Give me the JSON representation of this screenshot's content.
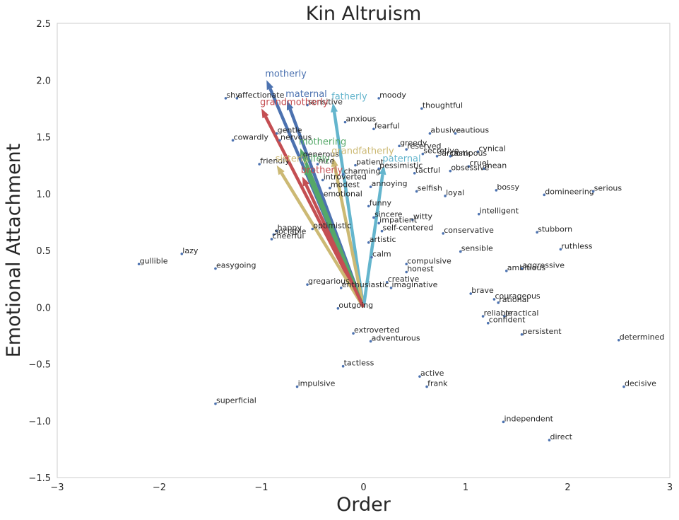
{
  "chart_data": {
    "type": "scatter",
    "title": "Kin Altruism",
    "xlabel": "Order",
    "ylabel": "Emotional Attachment",
    "xlim": [
      -3,
      3
    ],
    "ylim": [
      -1.5,
      2.5
    ],
    "xticks": [
      "−3",
      "−2",
      "−1",
      "0",
      "1",
      "2",
      "3"
    ],
    "yticks": [
      "−1.5",
      "−1.0",
      "−0.5",
      "0.0",
      "0.5",
      "1.0",
      "1.5",
      "2.0",
      "2.5"
    ],
    "grid": false,
    "point_color": "#4c72b0",
    "vectors": [
      {
        "label": "motherly",
        "x": -0.95,
        "y": 2.0,
        "color": "#4c72b0"
      },
      {
        "label": "maternal",
        "x": -0.75,
        "y": 1.82,
        "color": "#4c72b0"
      },
      {
        "label": "fatherly",
        "x": -0.3,
        "y": 1.8,
        "color": "#64b5cd"
      },
      {
        "label": "grandmotherly",
        "x": -1.0,
        "y": 1.75,
        "color": "#c44e52"
      },
      {
        "label": "mothering",
        "x": -0.62,
        "y": 1.4,
        "color": "#55a868"
      },
      {
        "label": "grandfatherly",
        "x": -0.3,
        "y": 1.32,
        "color": "#ccb974"
      },
      {
        "label": "paternal",
        "x": 0.2,
        "y": 1.25,
        "color": "#64b5cd"
      },
      {
        "label": "sisterly",
        "x": -0.85,
        "y": 1.25,
        "color": "#ccb974"
      },
      {
        "label": "wifely",
        "x": -0.58,
        "y": 1.25,
        "color": "#55a868"
      },
      {
        "label": "brotherly",
        "x": -0.6,
        "y": 1.15,
        "color": "#c44e52"
      }
    ],
    "points": [
      {
        "label": "shy",
        "x": -1.35,
        "y": 1.84
      },
      {
        "label": "affectionate",
        "x": -1.24,
        "y": 1.84
      },
      {
        "label": "sensitive",
        "x": -0.55,
        "y": 1.78
      },
      {
        "label": "moody",
        "x": 0.15,
        "y": 1.84
      },
      {
        "label": "thoughtful",
        "x": 0.57,
        "y": 1.75
      },
      {
        "label": "anxious",
        "x": -0.18,
        "y": 1.63
      },
      {
        "label": "fearful",
        "x": 0.1,
        "y": 1.57
      },
      {
        "label": "abusive",
        "x": 0.65,
        "y": 1.53
      },
      {
        "label": "cautious",
        "x": 0.9,
        "y": 1.53
      },
      {
        "label": "gentle",
        "x": -0.85,
        "y": 1.53
      },
      {
        "label": "cowardly",
        "x": -1.28,
        "y": 1.47
      },
      {
        "label": "nervous",
        "x": -0.82,
        "y": 1.47
      },
      {
        "label": "greedy",
        "x": 0.35,
        "y": 1.42
      },
      {
        "label": "reserved",
        "x": 0.42,
        "y": 1.39
      },
      {
        "label": "cynical",
        "x": 1.12,
        "y": 1.37
      },
      {
        "label": "secretive",
        "x": 0.58,
        "y": 1.35
      },
      {
        "label": "generous",
        "x": -0.6,
        "y": 1.32
      },
      {
        "label": "sarcastic",
        "x": 0.72,
        "y": 1.33
      },
      {
        "label": "pompous",
        "x": 0.85,
        "y": 1.33
      },
      {
        "label": "friendly",
        "x": -1.02,
        "y": 1.26
      },
      {
        "label": "nice",
        "x": -0.45,
        "y": 1.26
      },
      {
        "label": "patient",
        "x": -0.08,
        "y": 1.25
      },
      {
        "label": "pessimistic",
        "x": 0.15,
        "y": 1.22
      },
      {
        "label": "cruel",
        "x": 1.03,
        "y": 1.24
      },
      {
        "label": "mean",
        "x": 1.18,
        "y": 1.22
      },
      {
        "label": "obsessive",
        "x": 0.85,
        "y": 1.2
      },
      {
        "label": "tactful",
        "x": 0.5,
        "y": 1.18
      },
      {
        "label": "charming",
        "x": -0.2,
        "y": 1.17
      },
      {
        "label": "introverted",
        "x": -0.4,
        "y": 1.12
      },
      {
        "label": "modest",
        "x": -0.33,
        "y": 1.05
      },
      {
        "label": "annoying",
        "x": 0.07,
        "y": 1.06
      },
      {
        "label": "selfish",
        "x": 0.52,
        "y": 1.02
      },
      {
        "label": "bossy",
        "x": 1.3,
        "y": 1.03
      },
      {
        "label": "loyal",
        "x": 0.8,
        "y": 0.98
      },
      {
        "label": "domineering",
        "x": 1.77,
        "y": 0.99
      },
      {
        "label": "serious",
        "x": 2.25,
        "y": 1.02
      },
      {
        "label": "emotional",
        "x": -0.4,
        "y": 0.97
      },
      {
        "label": "funny",
        "x": 0.05,
        "y": 0.89
      },
      {
        "label": "intelligent",
        "x": 1.13,
        "y": 0.82
      },
      {
        "label": "sincere",
        "x": 0.1,
        "y": 0.79
      },
      {
        "label": "witty",
        "x": 0.48,
        "y": 0.77
      },
      {
        "label": "impatient",
        "x": 0.15,
        "y": 0.74
      },
      {
        "label": "optimistic",
        "x": -0.5,
        "y": 0.69
      },
      {
        "label": "self-centered",
        "x": 0.18,
        "y": 0.67
      },
      {
        "label": "conservative",
        "x": 0.78,
        "y": 0.65
      },
      {
        "label": "stubborn",
        "x": 1.7,
        "y": 0.66
      },
      {
        "label": "happy",
        "x": -0.85,
        "y": 0.67
      },
      {
        "label": "sociable",
        "x": -0.88,
        "y": 0.64
      },
      {
        "label": "cheerful",
        "x": -0.9,
        "y": 0.6
      },
      {
        "label": "artistic",
        "x": 0.05,
        "y": 0.57
      },
      {
        "label": "ruthless",
        "x": 1.93,
        "y": 0.51
      },
      {
        "label": "sensible",
        "x": 0.95,
        "y": 0.49
      },
      {
        "label": "gullible",
        "x": -2.2,
        "y": 0.38
      },
      {
        "label": "lazy",
        "x": -1.78,
        "y": 0.47
      },
      {
        "label": "calm",
        "x": 0.08,
        "y": 0.44
      },
      {
        "label": "easygoing",
        "x": -1.45,
        "y": 0.34
      },
      {
        "label": "compulsive",
        "x": 0.42,
        "y": 0.38
      },
      {
        "label": "aggressive",
        "x": 1.55,
        "y": 0.34
      },
      {
        "label": "honest",
        "x": 0.42,
        "y": 0.31
      },
      {
        "label": "ambitious",
        "x": 1.4,
        "y": 0.32
      },
      {
        "label": "creative",
        "x": 0.23,
        "y": 0.22
      },
      {
        "label": "gregarious",
        "x": -0.55,
        "y": 0.2
      },
      {
        "label": "enthusiastic",
        "x": -0.22,
        "y": 0.17
      },
      {
        "label": "imaginative",
        "x": 0.27,
        "y": 0.17
      },
      {
        "label": "brave",
        "x": 1.05,
        "y": 0.12
      },
      {
        "label": "courageous",
        "x": 1.28,
        "y": 0.07
      },
      {
        "label": "rational",
        "x": 1.32,
        "y": 0.04
      },
      {
        "label": "outgoing",
        "x": -0.25,
        "y": -0.01
      },
      {
        "label": "reliable",
        "x": 1.17,
        "y": -0.08
      },
      {
        "label": "practical",
        "x": 1.38,
        "y": -0.08
      },
      {
        "label": "confident",
        "x": 1.22,
        "y": -0.14
      },
      {
        "label": "extroverted",
        "x": -0.1,
        "y": -0.23
      },
      {
        "label": "persistent",
        "x": 1.55,
        "y": -0.24
      },
      {
        "label": "adventurous",
        "x": 0.07,
        "y": -0.3
      },
      {
        "label": "determined",
        "x": 2.5,
        "y": -0.29
      },
      {
        "label": "tactless",
        "x": -0.2,
        "y": -0.52
      },
      {
        "label": "active",
        "x": 0.55,
        "y": -0.61
      },
      {
        "label": "frank",
        "x": 0.62,
        "y": -0.7
      },
      {
        "label": "impulsive",
        "x": -0.65,
        "y": -0.7
      },
      {
        "label": "decisive",
        "x": 2.55,
        "y": -0.7
      },
      {
        "label": "superficial",
        "x": -1.45,
        "y": -0.85
      },
      {
        "label": "independent",
        "x": 1.37,
        "y": -1.01
      },
      {
        "label": "direct",
        "x": 1.82,
        "y": -1.17
      }
    ]
  }
}
